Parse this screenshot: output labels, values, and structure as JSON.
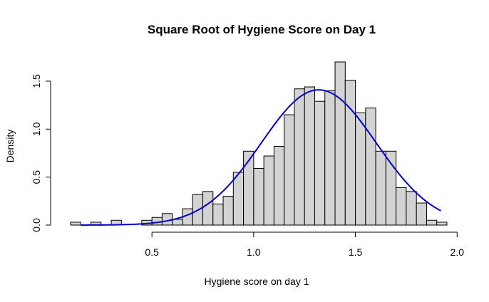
{
  "chart_data": {
    "type": "bar",
    "subtype": "histogram-with-density-curve",
    "title": "Square Root of Hygiene Score on Day 1",
    "xlabel": "Hygiene score on day 1",
    "ylabel": "Density",
    "xlim": [
      0.1,
      1.95
    ],
    "ylim": [
      0,
      1.7
    ],
    "x_ticks": [
      0.5,
      1.0,
      1.5,
      2.0
    ],
    "x_tick_labels": [
      "0.5",
      "1.0",
      "1.5",
      "2.0"
    ],
    "y_ticks": [
      0.0,
      0.5,
      1.0,
      1.5
    ],
    "y_tick_labels": [
      "0.0",
      "0.5",
      "1.0",
      "1.5"
    ],
    "bin_width": 0.05,
    "bins": [
      {
        "x0": 0.1,
        "density": 0.03
      },
      {
        "x0": 0.15,
        "density": 0.0
      },
      {
        "x0": 0.2,
        "density": 0.03
      },
      {
        "x0": 0.25,
        "density": 0.0
      },
      {
        "x0": 0.3,
        "density": 0.05
      },
      {
        "x0": 0.35,
        "density": 0.0
      },
      {
        "x0": 0.4,
        "density": 0.0
      },
      {
        "x0": 0.45,
        "density": 0.05
      },
      {
        "x0": 0.5,
        "density": 0.08
      },
      {
        "x0": 0.55,
        "density": 0.12
      },
      {
        "x0": 0.6,
        "density": 0.06
      },
      {
        "x0": 0.65,
        "density": 0.17
      },
      {
        "x0": 0.7,
        "density": 0.32
      },
      {
        "x0": 0.75,
        "density": 0.35
      },
      {
        "x0": 0.8,
        "density": 0.22
      },
      {
        "x0": 0.85,
        "density": 0.3
      },
      {
        "x0": 0.9,
        "density": 0.55
      },
      {
        "x0": 0.95,
        "density": 0.77
      },
      {
        "x0": 1.0,
        "density": 0.59
      },
      {
        "x0": 1.05,
        "density": 0.72
      },
      {
        "x0": 1.1,
        "density": 0.82
      },
      {
        "x0": 1.15,
        "density": 1.15
      },
      {
        "x0": 1.2,
        "density": 1.42
      },
      {
        "x0": 1.25,
        "density": 1.44
      },
      {
        "x0": 1.3,
        "density": 1.29
      },
      {
        "x0": 1.35,
        "density": 1.4
      },
      {
        "x0": 1.4,
        "density": 1.7
      },
      {
        "x0": 1.45,
        "density": 1.51
      },
      {
        "x0": 1.5,
        "density": 1.17
      },
      {
        "x0": 1.55,
        "density": 1.22
      },
      {
        "x0": 1.6,
        "density": 0.77
      },
      {
        "x0": 1.65,
        "density": 0.77
      },
      {
        "x0": 1.7,
        "density": 0.39
      },
      {
        "x0": 1.75,
        "density": 0.35
      },
      {
        "x0": 1.8,
        "density": 0.23
      },
      {
        "x0": 1.85,
        "density": 0.05
      },
      {
        "x0": 1.9,
        "density": 0.03
      }
    ],
    "density_curve": {
      "type": "normal",
      "mean": 1.32,
      "sd": 0.283,
      "x_range": [
        0.15,
        1.92
      ],
      "color": "#0000cd"
    },
    "bar_fill": "#d3d3d3",
    "grid": false,
    "legend": "none"
  }
}
